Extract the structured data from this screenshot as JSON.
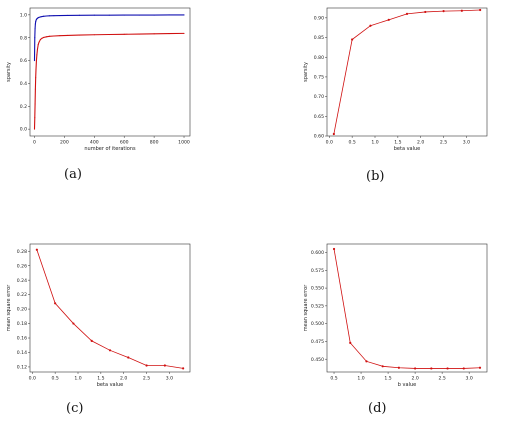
{
  "chart_data": [
    {
      "type": "scatter",
      "caption": "(a)",
      "xlabel": "number of iterations",
      "ylabel": "sparsity",
      "xlim": [
        -30,
        1040
      ],
      "ylim": [
        -0.06,
        1.06
      ],
      "xticks": [
        0,
        200,
        400,
        600,
        800,
        1000
      ],
      "xtick_labels": [
        "0",
        "200",
        "400",
        "600",
        "800",
        "1000"
      ],
      "yticks": [
        0.0,
        0.2,
        0.4,
        0.6,
        0.8,
        1.0
      ],
      "ytick_labels": [
        "0.0",
        "0.2",
        "0.4",
        "0.6",
        "0.8",
        "1.0"
      ],
      "series": [
        {
          "color": "#1010b0",
          "x": [
            0,
            2,
            4,
            6,
            8,
            10,
            13,
            16,
            20,
            25,
            30,
            40,
            50,
            60,
            80,
            100,
            130,
            170,
            220,
            300,
            400,
            500,
            600,
            700,
            800,
            900,
            1000
          ],
          "y": [
            0.6,
            0.8,
            0.88,
            0.92,
            0.94,
            0.95,
            0.96,
            0.965,
            0.97,
            0.975,
            0.978,
            0.982,
            0.985,
            0.987,
            0.99,
            0.992,
            0.993,
            0.994,
            0.995,
            0.996,
            0.997,
            0.997,
            0.998,
            0.998,
            0.998,
            0.999,
            0.999
          ]
        },
        {
          "color": "#d01010",
          "x": [
            0,
            2,
            4,
            6,
            8,
            10,
            13,
            16,
            20,
            25,
            30,
            40,
            50,
            60,
            80,
            100,
            130,
            170,
            220,
            300,
            400,
            500,
            600,
            700,
            800,
            900,
            1000
          ],
          "y": [
            0.0,
            0.1,
            0.22,
            0.35,
            0.45,
            0.52,
            0.6,
            0.65,
            0.7,
            0.74,
            0.76,
            0.785,
            0.795,
            0.802,
            0.808,
            0.812,
            0.815,
            0.818,
            0.82,
            0.823,
            0.826,
            0.828,
            0.83,
            0.832,
            0.834,
            0.836,
            0.838
          ]
        }
      ]
    },
    {
      "type": "line",
      "caption": "(b)",
      "xlabel": "beta value",
      "ylabel": "sparsity",
      "xlim": [
        -0.05,
        3.45
      ],
      "ylim": [
        0.6,
        0.925
      ],
      "xticks": [
        0.0,
        0.5,
        1.0,
        1.5,
        2.0,
        2.5,
        3.0
      ],
      "xtick_labels": [
        "0.0",
        "0.5",
        "1.0",
        "1.5",
        "2.0",
        "2.5",
        "3.0"
      ],
      "yticks": [
        0.6,
        0.65,
        0.7,
        0.75,
        0.8,
        0.85,
        0.9
      ],
      "ytick_labels": [
        "0.60",
        "0.65",
        "0.70",
        "0.75",
        "0.80",
        "0.85",
        "0.90"
      ],
      "series": [
        {
          "color": "#d01010",
          "x": [
            0.1,
            0.5,
            0.9,
            1.3,
            1.7,
            2.1,
            2.5,
            2.9,
            3.3
          ],
          "y": [
            0.605,
            0.845,
            0.88,
            0.895,
            0.91,
            0.915,
            0.917,
            0.918,
            0.92
          ]
        }
      ]
    },
    {
      "type": "line",
      "caption": "(c)",
      "xlabel": "beta value",
      "ylabel": "mean square error",
      "xlim": [
        -0.05,
        3.45
      ],
      "ylim": [
        0.113,
        0.29
      ],
      "xticks": [
        0.0,
        0.5,
        1.0,
        1.5,
        2.0,
        2.5,
        3.0
      ],
      "xtick_labels": [
        "0.0",
        "0.5",
        "1.0",
        "1.5",
        "2.0",
        "2.5",
        "3.0"
      ],
      "yticks": [
        0.12,
        0.14,
        0.16,
        0.18,
        0.2,
        0.22,
        0.24,
        0.26,
        0.28
      ],
      "ytick_labels": [
        "0.12",
        "0.14",
        "0.16",
        "0.18",
        "0.20",
        "0.22",
        "0.24",
        "0.26",
        "0.28"
      ],
      "series": [
        {
          "color": "#d01010",
          "x": [
            0.1,
            0.5,
            0.9,
            1.3,
            1.7,
            2.1,
            2.5,
            2.9,
            3.3
          ],
          "y": [
            0.282,
            0.208,
            0.18,
            0.156,
            0.143,
            0.133,
            0.122,
            0.122,
            0.118
          ]
        }
      ]
    },
    {
      "type": "line",
      "caption": "(d)",
      "xlabel": "b value",
      "ylabel": "mean square error",
      "xlim": [
        0.37,
        3.33
      ],
      "ylim": [
        0.432,
        0.612
      ],
      "xticks": [
        0.5,
        0.8,
        1.1,
        1.4,
        1.7,
        2.0,
        2.3,
        2.6,
        2.9,
        3.2
      ],
      "xtick_labels": [
        "0.5",
        "1.0",
        "1.5",
        "2.0",
        "2.5",
        "3.0"
      ],
      "xtick_values": [
        0.5,
        1.0,
        1.5,
        2.0,
        2.5,
        3.0
      ],
      "yticks": [
        0.45,
        0.475,
        0.5,
        0.525,
        0.55,
        0.575,
        0.6
      ],
      "ytick_labels": [
        "0.450",
        "0.475",
        "0.500",
        "0.525",
        "0.550",
        "0.575",
        "0.600"
      ],
      "series": [
        {
          "color": "#d01010",
          "x": [
            0.5,
            0.8,
            1.1,
            1.4,
            1.7,
            2.0,
            2.3,
            2.6,
            2.9,
            3.2
          ],
          "y": [
            0.605,
            0.473,
            0.447,
            0.44,
            0.438,
            0.437,
            0.437,
            0.437,
            0.437,
            0.438
          ]
        }
      ]
    }
  ]
}
